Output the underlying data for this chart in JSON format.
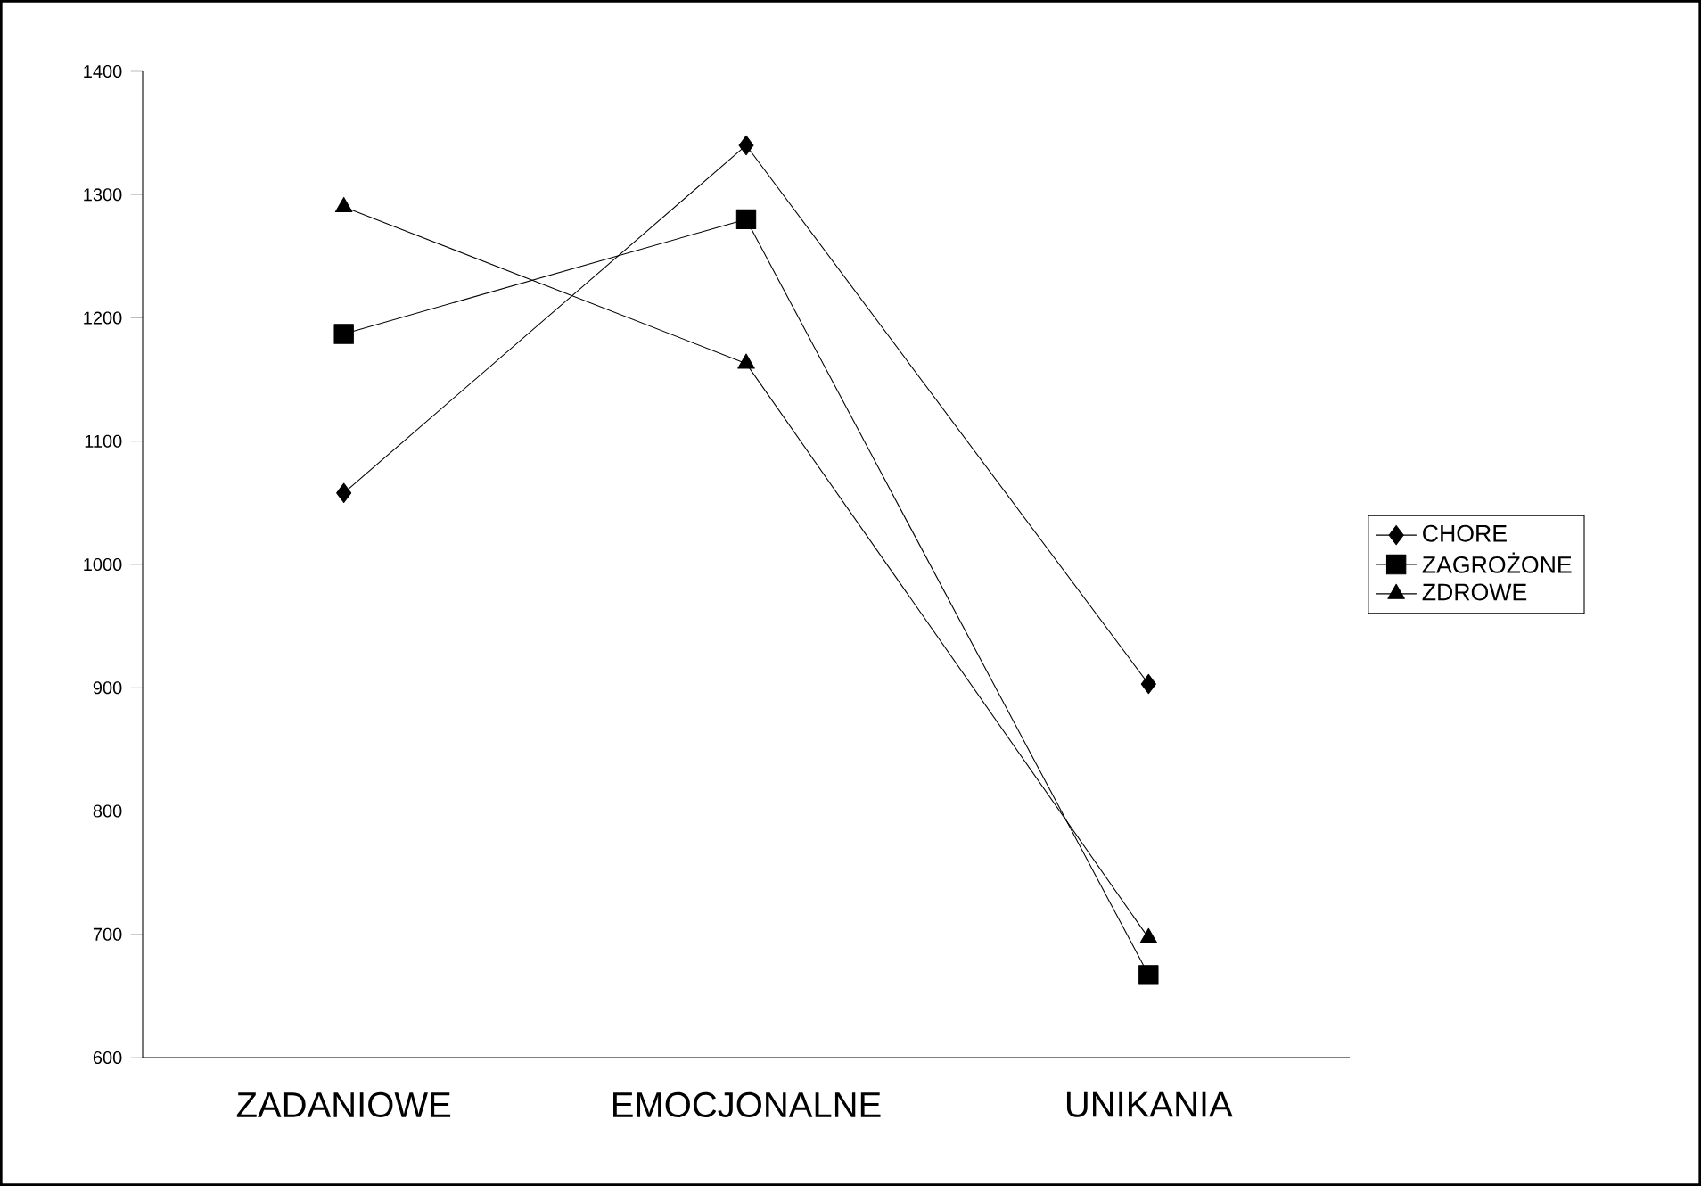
{
  "chart_data": {
    "type": "line",
    "categories": [
      "ZADANIOWE",
      "EMOCJONALNE",
      "UNIKANIA"
    ],
    "series": [
      {
        "name": "CHORE",
        "color": "#000000",
        "marker": "diamond",
        "values": [
          1058,
          1340,
          903
        ]
      },
      {
        "name": "ZAGROŻONE",
        "color": "#000000",
        "marker": "square",
        "values": [
          1187,
          1280,
          667
        ]
      },
      {
        "name": "ZDROWE",
        "color": "#000000",
        "marker": "triangle",
        "values": [
          1290,
          1163,
          697
        ]
      }
    ],
    "ylim": [
      600,
      1400
    ],
    "yticks": [
      600,
      700,
      800,
      900,
      1000,
      1100,
      1200,
      1300,
      1400
    ],
    "grid": false,
    "legend": "right",
    "line_style": "solid"
  }
}
